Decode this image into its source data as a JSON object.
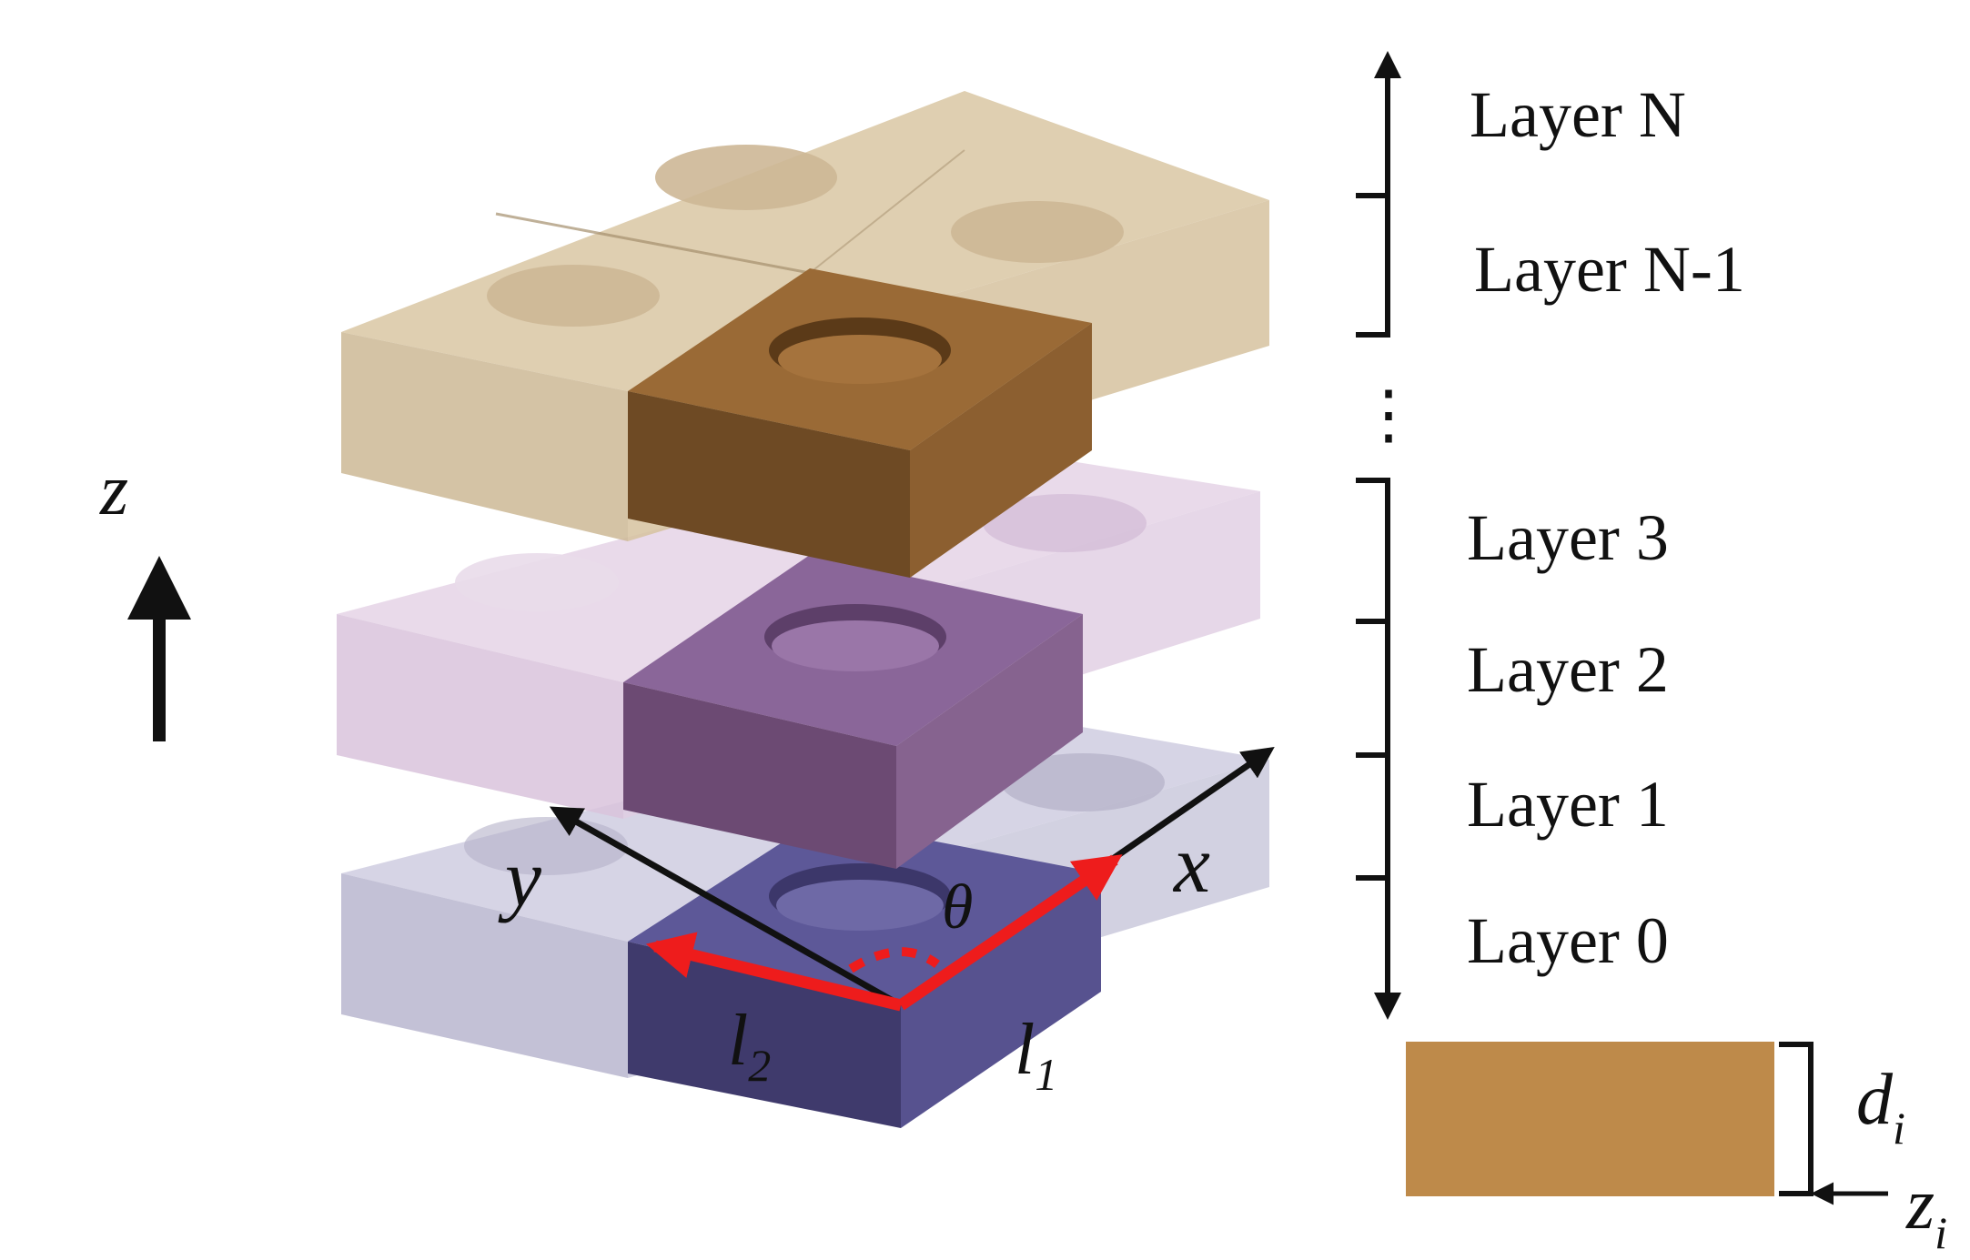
{
  "axes": {
    "z_label": "z",
    "x_label": "x",
    "y_label": "y",
    "theta_label": "θ",
    "l1_main": "l",
    "l1_sub": "1",
    "l2_main": "l",
    "l2_sub": "2"
  },
  "layers": [
    {
      "id": "N",
      "label": "Layer N"
    },
    {
      "id": "N-1",
      "label": "Layer N-1"
    },
    {
      "id": "dots",
      "label": "⋮"
    },
    {
      "id": "3",
      "label": "Layer 3"
    },
    {
      "id": "2",
      "label": "Layer 2"
    },
    {
      "id": "1",
      "label": "Layer 1"
    },
    {
      "id": "0",
      "label": "Layer 0"
    }
  ],
  "slab": {
    "d_main": "d",
    "d_sub": "i",
    "z_main": "z",
    "z_sub": "i"
  },
  "colors": {
    "top_layer": "#ccb48f",
    "top_highlight": "#8b5e30",
    "middle_layer": "#dcc6de",
    "middle_highlight": "#7a5488",
    "bottom_layer": "#c4c2d6",
    "bottom_highlight": "#4a4580",
    "slab": "#be8a4a",
    "vector": "#ee1c1c"
  }
}
